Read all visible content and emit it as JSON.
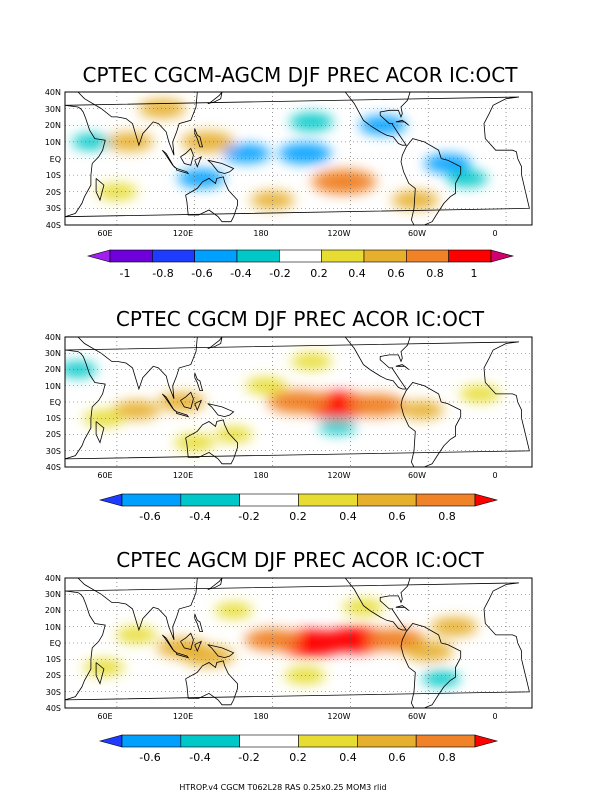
{
  "footer": "HTROP.v4 CGCM T062L28 RAS 0.25x0.25 MOM3 rlid",
  "chart_data": [
    {
      "type": "heatmap",
      "title": "CPTEC CGCM-AGCM DJF PREC ACOR IC:OCT",
      "lat_ticks": [
        "40N",
        "30N",
        "20N",
        "10N",
        "EQ",
        "10S",
        "20S",
        "30S",
        "40S"
      ],
      "lon_ticks": [
        "60E",
        "120E",
        "180",
        "120W",
        "60W",
        "0"
      ],
      "colorbar": {
        "colors": [
          "#a020f0",
          "#6e00dc",
          "#1e3cff",
          "#00a0ff",
          "#00c8c8",
          "#ffffff",
          "#e6dc32",
          "#e6af2d",
          "#f08228",
          "#ff0000",
          "#d2006e"
        ],
        "labels": [
          "-1",
          "-0.8",
          "-0.6",
          "-0.4",
          "-0.2",
          "0.2",
          "0.4",
          "0.6",
          "0.8",
          "1"
        ]
      },
      "features": [
        {
          "lon": 205,
          "lat": 3,
          "value": -0.55
        },
        {
          "lon": 160,
          "lat": 3,
          "value": -0.45
        },
        {
          "lon": 235,
          "lat": -14,
          "value": 0.75
        },
        {
          "lon": 265,
          "lat": 20,
          "value": -0.45
        },
        {
          "lon": 210,
          "lat": 22,
          "value": -0.4
        },
        {
          "lon": 130,
          "lat": 10,
          "value": 0.55
        },
        {
          "lon": 70,
          "lat": 10,
          "value": 0.45
        },
        {
          "lon": 95,
          "lat": 30,
          "value": 0.45
        },
        {
          "lon": 125,
          "lat": -12,
          "value": -0.45
        },
        {
          "lon": 315,
          "lat": -3,
          "value": -0.45
        },
        {
          "lon": 330,
          "lat": -12,
          "value": -0.35
        },
        {
          "lon": 290,
          "lat": -25,
          "value": 0.45
        },
        {
          "lon": 60,
          "lat": -20,
          "value": 0.35
        },
        {
          "lon": 180,
          "lat": -25,
          "value": 0.4
        },
        {
          "lon": 40,
          "lat": 10,
          "value": -0.3
        }
      ]
    },
    {
      "type": "heatmap",
      "title": "CPTEC CGCM DJF PREC ACOR IC:OCT",
      "lat_ticks": [
        "40N",
        "30N",
        "20N",
        "10N",
        "EQ",
        "10S",
        "20S",
        "30S",
        "40S"
      ],
      "lon_ticks": [
        "60E",
        "120E",
        "180",
        "120W",
        "60W",
        "0"
      ],
      "colorbar": {
        "colors": [
          "#1e3cff",
          "#00a0ff",
          "#00c8c8",
          "#ffffff",
          "#e6dc32",
          "#e6af2d",
          "#f08228",
          "#ff0000"
        ],
        "labels": [
          "-0.6",
          "-0.4",
          "-0.2",
          "0.2",
          "0.4",
          "0.6",
          "0.8"
        ]
      },
      "features": [
        {
          "lon": 230,
          "lat": -2,
          "value": 0.85
        },
        {
          "lon": 200,
          "lat": 0,
          "value": 0.7
        },
        {
          "lon": 260,
          "lat": -2,
          "value": 0.65
        },
        {
          "lon": 175,
          "lat": 10,
          "value": 0.35
        },
        {
          "lon": 110,
          "lat": 0,
          "value": 0.45
        },
        {
          "lon": 75,
          "lat": -5,
          "value": 0.45
        },
        {
          "lon": 295,
          "lat": -5,
          "value": 0.4
        },
        {
          "lon": 50,
          "lat": -10,
          "value": 0.35
        },
        {
          "lon": 120,
          "lat": -25,
          "value": 0.35
        },
        {
          "lon": 230,
          "lat": -15,
          "value": -0.3
        },
        {
          "lon": 150,
          "lat": -20,
          "value": 0.3
        },
        {
          "lon": 210,
          "lat": 25,
          "value": 0.35
        },
        {
          "lon": 30,
          "lat": 20,
          "value": -0.3
        },
        {
          "lon": 340,
          "lat": 5,
          "value": 0.35
        }
      ]
    },
    {
      "type": "heatmap",
      "title": "CPTEC AGCM DJF PREC ACOR IC:OCT",
      "lat_ticks": [
        "40N",
        "30N",
        "20N",
        "10N",
        "EQ",
        "10S",
        "20S",
        "30S",
        "40S"
      ],
      "lon_ticks": [
        "60E",
        "120E",
        "180",
        "120W",
        "60W",
        "0"
      ],
      "colorbar": {
        "colors": [
          "#1e3cff",
          "#00a0ff",
          "#00c8c8",
          "#ffffff",
          "#e6dc32",
          "#e6af2d",
          "#f08228",
          "#ff0000"
        ],
        "labels": [
          "-0.6",
          "-0.4",
          "-0.2",
          "0.2",
          "0.4",
          "0.6",
          "0.8"
        ]
      },
      "features": [
        {
          "lon": 210,
          "lat": 0,
          "value": 0.85
        },
        {
          "lon": 245,
          "lat": 2,
          "value": 0.8
        },
        {
          "lon": 275,
          "lat": 2,
          "value": 0.65
        },
        {
          "lon": 180,
          "lat": 2,
          "value": 0.6
        },
        {
          "lon": 130,
          "lat": -8,
          "value": 0.55
        },
        {
          "lon": 110,
          "lat": -3,
          "value": 0.5
        },
        {
          "lon": 300,
          "lat": -5,
          "value": 0.5
        },
        {
          "lon": 320,
          "lat": 10,
          "value": 0.45
        },
        {
          "lon": 75,
          "lat": 5,
          "value": 0.35
        },
        {
          "lon": 50,
          "lat": -15,
          "value": 0.35
        },
        {
          "lon": 150,
          "lat": 20,
          "value": 0.3
        },
        {
          "lon": 250,
          "lat": 22,
          "value": 0.35
        },
        {
          "lon": 205,
          "lat": -20,
          "value": 0.35
        },
        {
          "lon": 310,
          "lat": -22,
          "value": -0.3
        }
      ]
    }
  ]
}
